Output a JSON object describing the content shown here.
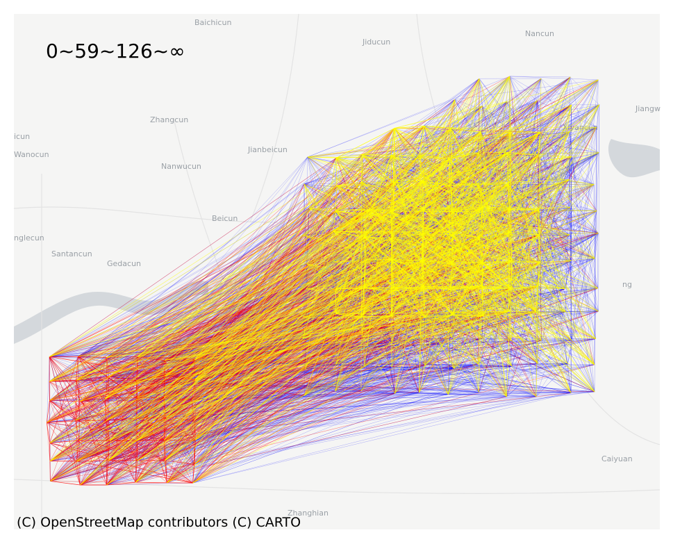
{
  "legend_text": "0~59~126~∞",
  "attribution": "(C) OpenStreetMap contributors (C) CARTO",
  "colors": {
    "map_background": "#f5f5f4",
    "water": "#d4d8dc",
    "road": "#ffffff",
    "low_flow": "#0000ff",
    "mid_flow": "#ff0000",
    "high_flow": "#ffff00"
  },
  "places": [
    {
      "name": "Baichicun"
    },
    {
      "name": "Jiducun"
    },
    {
      "name": "Nancun"
    },
    {
      "name": "Jiangw"
    },
    {
      "name": "Zhangcun"
    },
    {
      "name": "icun"
    },
    {
      "name": "Xiyancun"
    },
    {
      "name": "Wanocun"
    },
    {
      "name": "Jianbeicun"
    },
    {
      "name": "Nanwucun"
    },
    {
      "name": "Beicun"
    },
    {
      "name": "nglecun"
    },
    {
      "name": "Santancun"
    },
    {
      "name": "Gedacun"
    },
    {
      "name": "ng"
    },
    {
      "name": "Caiyuan"
    },
    {
      "name": "Zhanghian"
    }
  ]
}
